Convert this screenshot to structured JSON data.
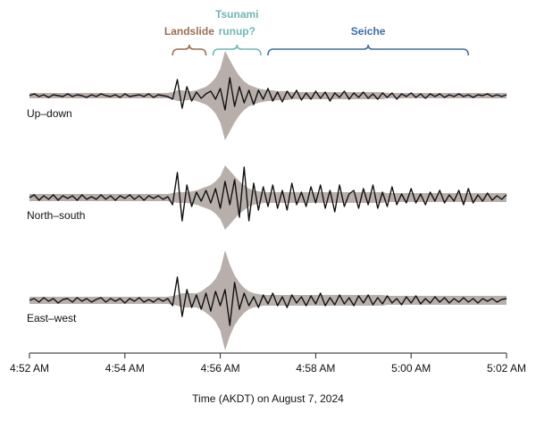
{
  "chart_data": {
    "type": "seismogram",
    "xlabel": "Time (AKDT) on August 7, 2024",
    "xlim": [
      0,
      10
    ],
    "xticks": [
      {
        "value": 0,
        "label": "4:52 AM"
      },
      {
        "value": 2,
        "label": "4:54 AM"
      },
      {
        "value": 4,
        "label": "4:56 AM"
      },
      {
        "value": 6,
        "label": "4:58 AM"
      },
      {
        "value": 8,
        "label": "5:00 AM"
      },
      {
        "value": 10,
        "label": "5:02 AM"
      }
    ],
    "ylim": [
      -60,
      60
    ],
    "x": [
      0,
      0.1,
      0.2,
      0.3,
      0.4,
      0.5,
      0.6,
      0.7,
      0.8,
      0.9,
      1,
      1.1,
      1.2,
      1.3,
      1.4,
      1.5,
      1.6,
      1.7,
      1.8,
      1.9,
      2,
      2.1,
      2.2,
      2.3,
      2.4,
      2.5,
      2.6,
      2.7,
      2.8,
      2.9,
      3,
      3.1,
      3.2,
      3.3,
      3.4,
      3.5,
      3.6,
      3.7,
      3.8,
      3.9,
      4,
      4.1,
      4.2,
      4.3,
      4.4,
      4.5,
      4.6,
      4.7,
      4.8,
      4.9,
      5,
      5.1,
      5.2,
      5.3,
      5.4,
      5.5,
      5.6,
      5.7,
      5.8,
      5.9,
      6,
      6.1,
      6.2,
      6.3,
      6.4,
      6.5,
      6.6,
      6.7,
      6.8,
      6.9,
      7,
      7.1,
      7.2,
      7.3,
      7.4,
      7.5,
      7.6,
      7.7,
      7.8,
      7.9,
      8,
      8.1,
      8.2,
      8.3,
      8.4,
      8.5,
      8.6,
      8.7,
      8.8,
      8.9,
      9,
      9.1,
      9.2,
      9.3,
      9.4,
      9.5,
      9.6,
      9.7,
      9.8,
      9.9,
      10
    ],
    "series": [
      {
        "name": "Up–down",
        "color": "#111111",
        "envelope_color": "#b8afab",
        "values": [
          0,
          2,
          -1,
          1,
          -2,
          1,
          0,
          -1,
          2,
          -1,
          1,
          0,
          -2,
          1,
          -1,
          2,
          0,
          -1,
          1,
          -2,
          2,
          -1,
          0,
          1,
          -1,
          2,
          -2,
          1,
          0,
          -1,
          -4,
          18,
          -14,
          10,
          -6,
          4,
          -3,
          2,
          5,
          -4,
          8,
          -16,
          20,
          -12,
          10,
          -8,
          6,
          -10,
          6,
          -4,
          8,
          -6,
          4,
          -7,
          5,
          -3,
          6,
          -5,
          3,
          -4,
          5,
          -3,
          4,
          -6,
          3,
          -2,
          5,
          -4,
          3,
          -2,
          4,
          -3,
          2,
          -4,
          3,
          -2,
          3,
          -4,
          2,
          -1,
          3,
          -2,
          2,
          -3,
          2,
          -1,
          2,
          -2,
          1,
          -1,
          2,
          -1,
          1,
          -2,
          1,
          0,
          2,
          -1,
          1,
          -1,
          1
        ],
        "envelope": [
          3,
          3,
          3,
          3,
          3,
          3,
          3,
          3,
          3,
          3,
          3,
          3,
          3,
          3,
          3,
          3,
          3,
          3,
          3,
          3,
          3,
          3,
          3,
          3,
          3,
          3,
          3,
          3,
          3,
          3,
          4,
          6,
          6,
          5,
          5,
          6,
          8,
          10,
          14,
          20,
          30,
          50,
          40,
          30,
          22,
          16,
          12,
          10,
          8,
          7,
          6,
          6,
          5,
          5,
          5,
          4,
          4,
          4,
          4,
          4,
          4,
          4,
          4,
          4,
          4,
          4,
          4,
          4,
          4,
          4,
          4,
          4,
          4,
          4,
          4,
          3,
          3,
          3,
          3,
          3,
          3,
          3,
          3,
          3,
          3,
          3,
          3,
          3,
          3,
          3,
          3,
          3,
          3,
          3,
          3,
          3,
          3,
          3,
          3,
          3,
          3
        ]
      },
      {
        "name": "North–south",
        "color": "#111111",
        "envelope_color": "#b8afab",
        "values": [
          0,
          3,
          -3,
          2,
          -2,
          3,
          -3,
          2,
          -1,
          2,
          -3,
          3,
          -2,
          1,
          -2,
          3,
          -2,
          2,
          -3,
          2,
          -1,
          3,
          -2,
          2,
          -3,
          2,
          -1,
          2,
          -2,
          1,
          -8,
          28,
          -26,
          14,
          -10,
          6,
          -4,
          8,
          -6,
          10,
          -12,
          18,
          -8,
          20,
          -22,
          34,
          -26,
          16,
          -14,
          12,
          -10,
          14,
          -12,
          8,
          -14,
          16,
          -8,
          6,
          -10,
          12,
          -6,
          14,
          -12,
          8,
          -16,
          14,
          -10,
          4,
          8,
          -12,
          10,
          -8,
          14,
          -12,
          6,
          -10,
          12,
          -8,
          4,
          -6,
          10,
          -6,
          4,
          -8,
          6,
          -4,
          8,
          -6,
          3,
          -4,
          8,
          -8,
          10,
          -6,
          3,
          -4,
          5,
          -3,
          2,
          -2,
          3
        ],
        "envelope": [
          4,
          4,
          4,
          4,
          4,
          4,
          4,
          4,
          4,
          4,
          4,
          4,
          4,
          4,
          4,
          4,
          4,
          4,
          4,
          4,
          4,
          4,
          4,
          4,
          4,
          4,
          4,
          4,
          4,
          4,
          5,
          6,
          6,
          6,
          7,
          8,
          10,
          12,
          14,
          18,
          24,
          36,
          30,
          24,
          18,
          14,
          10,
          8,
          7,
          6,
          6,
          6,
          6,
          6,
          6,
          6,
          6,
          6,
          6,
          6,
          6,
          6,
          6,
          6,
          6,
          6,
          6,
          6,
          6,
          6,
          6,
          6,
          6,
          6,
          6,
          5,
          5,
          5,
          5,
          5,
          5,
          5,
          5,
          5,
          5,
          5,
          5,
          5,
          5,
          5,
          5,
          5,
          5,
          5,
          5,
          5,
          5,
          5,
          5,
          5,
          5
        ]
      },
      {
        "name": "East–west",
        "color": "#111111",
        "envelope_color": "#b8afab",
        "values": [
          0,
          2,
          -2,
          3,
          -1,
          2,
          -3,
          1,
          2,
          -2,
          3,
          -1,
          2,
          -2,
          1,
          3,
          -2,
          2,
          -1,
          2,
          -3,
          2,
          -1,
          3,
          -2,
          1,
          -2,
          2,
          -1,
          2,
          -6,
          26,
          -18,
          12,
          -8,
          6,
          -10,
          8,
          -12,
          10,
          -6,
          12,
          -28,
          20,
          -10,
          8,
          -6,
          4,
          -8,
          6,
          -4,
          8,
          -6,
          4,
          -8,
          6,
          -3,
          4,
          -6,
          5,
          -4,
          8,
          -6,
          3,
          -5,
          6,
          -4,
          3,
          -6,
          5,
          -3,
          6,
          -5,
          3,
          -4,
          5,
          -3,
          2,
          -5,
          4,
          -3,
          5,
          -4,
          2,
          -3,
          4,
          -2,
          3,
          -3,
          2,
          -2,
          3,
          -2,
          2,
          -3,
          2,
          -1,
          2,
          -2,
          1,
          2
        ],
        "envelope": [
          4,
          4,
          4,
          4,
          4,
          4,
          4,
          4,
          4,
          4,
          4,
          4,
          4,
          4,
          4,
          4,
          4,
          4,
          4,
          4,
          4,
          4,
          4,
          4,
          4,
          4,
          4,
          4,
          4,
          4,
          5,
          6,
          8,
          8,
          8,
          8,
          10,
          14,
          18,
          24,
          34,
          56,
          40,
          28,
          20,
          14,
          10,
          8,
          7,
          6,
          6,
          6,
          6,
          6,
          6,
          6,
          6,
          6,
          6,
          6,
          6,
          6,
          6,
          6,
          6,
          6,
          6,
          6,
          6,
          6,
          6,
          6,
          6,
          6,
          6,
          5,
          5,
          5,
          5,
          5,
          5,
          5,
          5,
          5,
          5,
          5,
          5,
          5,
          5,
          5,
          5,
          5,
          5,
          5,
          5,
          5,
          5,
          5,
          5,
          5,
          5
        ]
      }
    ],
    "annotations": [
      {
        "text": [
          "Landslide"
        ],
        "start": 3.0,
        "end": 3.7,
        "color": "#9b6e52"
      },
      {
        "text": [
          "Tsunami",
          "runup?"
        ],
        "start": 3.85,
        "end": 4.85,
        "color": "#6fb7b5"
      },
      {
        "text": [
          "Seiche"
        ],
        "start": 5.0,
        "end": 9.2,
        "color": "#3b6fa8"
      }
    ]
  }
}
